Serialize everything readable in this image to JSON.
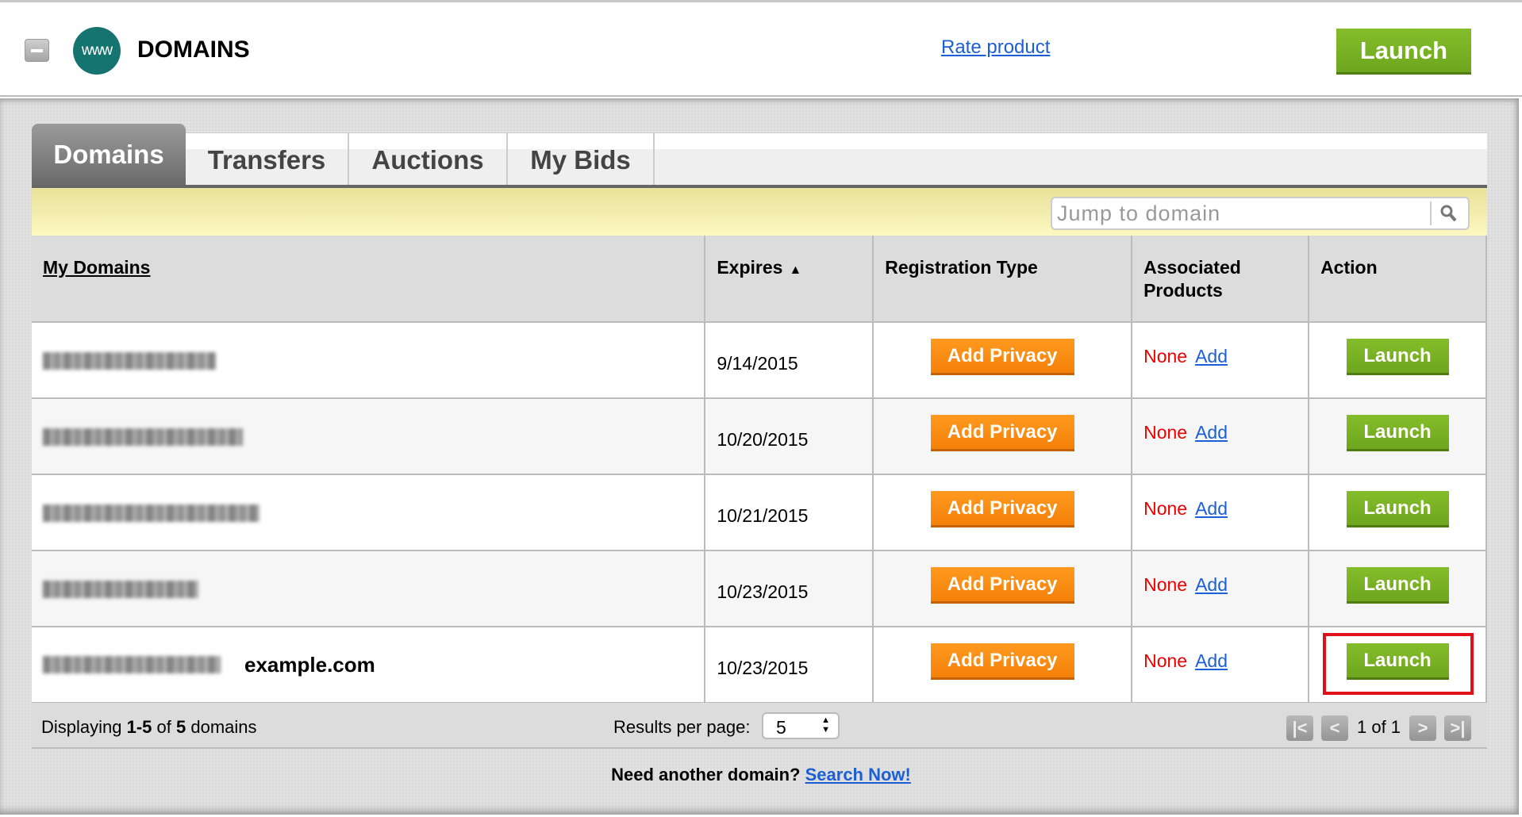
{
  "header": {
    "title": "DOMAINS",
    "logo_text": "www",
    "rate_link": "Rate product",
    "launch_label": "Launch"
  },
  "tabs": [
    {
      "label": "Domains",
      "active": true
    },
    {
      "label": "Transfers"
    },
    {
      "label": "Auctions"
    },
    {
      "label": "My Bids"
    }
  ],
  "search": {
    "placeholder": "Jump to domain"
  },
  "table": {
    "columns": [
      "My Domains",
      "Expires",
      "Registration Type",
      "Associated Products",
      "Action"
    ],
    "rows": [
      {
        "expires": "9/14/2015",
        "reg_button": "Add Privacy",
        "products": "None",
        "add": "Add",
        "action": "Launch"
      },
      {
        "expires": "10/20/2015",
        "reg_button": "Add Privacy",
        "products": "None",
        "add": "Add",
        "action": "Launch"
      },
      {
        "expires": "10/21/2015",
        "reg_button": "Add Privacy",
        "products": "None",
        "add": "Add",
        "action": "Launch"
      },
      {
        "expires": "10/23/2015",
        "reg_button": "Add Privacy",
        "products": "None",
        "add": "Add",
        "action": "Launch"
      },
      {
        "label": "example.com",
        "expires": "10/23/2015",
        "reg_button": "Add Privacy",
        "products": "None",
        "add": "Add",
        "action": "Launch",
        "highlighted": true
      }
    ]
  },
  "footer": {
    "display_prefix": "Displaying ",
    "display_range": "1-5",
    "display_of": " of ",
    "display_total": "5",
    "display_suffix": " domains",
    "rpp_label": "Results per page:",
    "rpp_value": "5",
    "page_info": "1 of 1"
  },
  "bottom": {
    "text": "Need another domain? ",
    "link": "Search Now!"
  },
  "colors": {
    "launch_green": "#7ab325",
    "privacy_orange": "#f68b13",
    "highlight_red": "#e0101a",
    "link_blue": "#1a5fd6",
    "logo_teal": "#167470"
  }
}
